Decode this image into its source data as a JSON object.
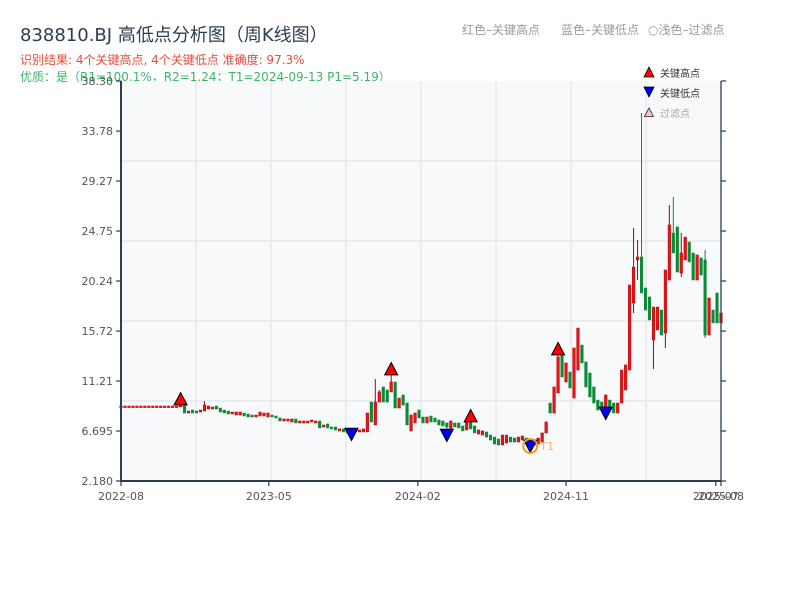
{
  "header": {
    "title": "838810.BJ 高低点分析图（周K线图）",
    "result_line": "识别结果: 4个关键高点, 4个关键低点  准确度: 97.3%",
    "quality_line": "优质：是（R1=100.1%，R2=1.24；T1=2024-09-13 P1=5.19）",
    "color_notes": [
      "红色–关键高点",
      "蓝色–关键低点",
      "○浅色–过滤点"
    ]
  },
  "legend": [
    {
      "icon": "triangle-up-icon",
      "color": "#ff0000",
      "label": "关键高点"
    },
    {
      "icon": "triangle-down-icon",
      "color": "#0000ff",
      "label": "关键低点"
    },
    {
      "icon": "triangle-outline-icon",
      "color": "#f7c6c6",
      "label": "过滤点"
    }
  ],
  "colors": {
    "up": "#e8141b",
    "up_edge": "#b30000",
    "down": "#0b8a36",
    "key_high": "#ff0000",
    "key_low": "#0000ff",
    "target_ring": "#f39c12",
    "target_label": "#f5b56a",
    "axis": "#2c3e50",
    "grid": "#e1e5ea",
    "plot_bg": "#f7f9fb",
    "tick_label": "#555555"
  },
  "chart_data": {
    "type": "candlestick",
    "title": "838810.BJ 高低点分析图（周K线图）",
    "xlabel": "",
    "ylabel": "",
    "ylim": [
      2.18,
      38.3
    ],
    "grid": {
      "x_divisions": 8,
      "y_divisions": 5
    },
    "legend_position": "upper right",
    "y_ticks": [
      "38.30",
      "33.78",
      "29.27",
      "24.75",
      "20.24",
      "15.72",
      "11.21",
      "6.695",
      "2.180"
    ],
    "x_ticks": [
      {
        "label": "2022-08",
        "index": 0
      },
      {
        "label": "2023-05",
        "index": 37.2
      },
      {
        "label": "2024-02",
        "index": 74.7
      },
      {
        "label": "2024-11",
        "index": 112.0
      },
      {
        "label": "2025-07",
        "index": 149.7
      },
      {
        "label": "2025-08",
        "index": 151
      }
    ],
    "candle_fields": [
      "open",
      "high",
      "low",
      "close"
    ],
    "candles": [
      [
        8.88,
        8.88,
        8.88,
        8.88
      ],
      [
        8.88,
        8.88,
        8.88,
        8.88
      ],
      [
        8.88,
        8.88,
        8.88,
        8.88
      ],
      [
        8.88,
        8.88,
        8.88,
        8.88
      ],
      [
        8.88,
        8.88,
        8.88,
        8.88
      ],
      [
        8.88,
        8.88,
        8.88,
        8.88
      ],
      [
        8.88,
        8.88,
        8.88,
        8.88
      ],
      [
        8.88,
        8.88,
        8.88,
        8.88
      ],
      [
        8.88,
        8.88,
        8.88,
        8.88
      ],
      [
        8.88,
        8.88,
        8.88,
        8.88
      ],
      [
        8.88,
        8.88,
        8.88,
        8.88
      ],
      [
        8.88,
        8.88,
        8.88,
        8.88
      ],
      [
        8.88,
        8.88,
        8.88,
        8.88
      ],
      [
        8.88,
        8.88,
        8.88,
        8.88
      ],
      [
        8.88,
        8.88,
        8.88,
        8.88
      ],
      [
        8.88,
        9.04,
        8.86,
        9.04
      ],
      [
        9.04,
        9.04,
        8.32,
        8.32
      ],
      [
        8.32,
        8.5,
        8.32,
        8.5
      ],
      [
        8.59,
        8.59,
        8.32,
        8.32
      ],
      [
        8.5,
        8.5,
        8.32,
        8.32
      ],
      [
        8.41,
        8.59,
        8.41,
        8.59
      ],
      [
        8.5,
        9.4,
        8.5,
        9.04
      ],
      [
        8.68,
        8.95,
        8.68,
        8.95
      ],
      [
        8.68,
        8.86,
        8.68,
        8.86
      ],
      [
        8.95,
        8.95,
        8.68,
        8.68
      ],
      [
        8.77,
        8.77,
        8.41,
        8.41
      ],
      [
        8.59,
        8.59,
        8.32,
        8.32
      ],
      [
        8.5,
        8.5,
        8.23,
        8.23
      ],
      [
        8.23,
        8.41,
        8.23,
        8.41
      ],
      [
        8.14,
        8.41,
        8.14,
        8.41
      ],
      [
        8.14,
        8.41,
        8.14,
        8.41
      ],
      [
        8.32,
        8.32,
        8.05,
        8.05
      ],
      [
        8.23,
        8.23,
        7.96,
        7.96
      ],
      [
        8.14,
        8.14,
        7.96,
        7.96
      ],
      [
        7.96,
        8.14,
        7.96,
        8.14
      ],
      [
        8.05,
        8.41,
        8.05,
        8.41
      ],
      [
        8.05,
        8.32,
        8.05,
        8.32
      ],
      [
        7.96,
        8.32,
        7.96,
        8.32
      ],
      [
        8.14,
        8.14,
        7.96,
        7.96
      ],
      [
        8.05,
        8.05,
        7.87,
        7.87
      ],
      [
        7.87,
        7.87,
        7.6,
        7.6
      ],
      [
        7.6,
        7.78,
        7.6,
        7.78
      ],
      [
        7.6,
        7.78,
        7.6,
        7.78
      ],
      [
        7.51,
        7.78,
        7.51,
        7.78
      ],
      [
        7.78,
        7.78,
        7.42,
        7.42
      ],
      [
        7.42,
        7.6,
        7.42,
        7.6
      ],
      [
        7.42,
        7.6,
        7.42,
        7.6
      ],
      [
        7.42,
        7.6,
        7.42,
        7.6
      ],
      [
        7.51,
        7.69,
        7.51,
        7.69
      ],
      [
        7.42,
        7.6,
        7.42,
        7.6
      ],
      [
        7.6,
        7.6,
        6.97,
        6.97
      ],
      [
        7.06,
        7.24,
        7.06,
        7.24
      ],
      [
        7.33,
        7.33,
        6.97,
        6.97
      ],
      [
        7.06,
        7.06,
        6.88,
        6.88
      ],
      [
        7.06,
        7.06,
        6.79,
        6.79
      ],
      [
        6.7,
        6.88,
        6.7,
        6.88
      ],
      [
        6.88,
        6.88,
        6.61,
        6.61
      ],
      [
        6.79,
        6.79,
        6.52,
        6.52
      ],
      [
        6.7,
        6.7,
        6.42,
        6.52
      ],
      [
        6.61,
        6.79,
        6.61,
        6.79
      ],
      [
        6.61,
        6.79,
        6.61,
        6.79
      ],
      [
        6.61,
        6.88,
        6.61,
        6.88
      ],
      [
        6.61,
        8.32,
        6.61,
        8.32
      ],
      [
        9.31,
        9.31,
        7.51,
        7.51
      ],
      [
        7.24,
        11.39,
        7.24,
        9.31
      ],
      [
        9.31,
        10.4,
        9.31,
        10.22
      ],
      [
        10.67,
        10.67,
        9.31,
        9.31
      ],
      [
        10.4,
        10.4,
        9.31,
        9.31
      ],
      [
        10.22,
        11.75,
        10.22,
        11.12
      ],
      [
        11.12,
        11.12,
        8.77,
        8.77
      ],
      [
        8.77,
        9.67,
        8.77,
        9.67
      ],
      [
        9.95,
        9.95,
        9.04,
        9.04
      ],
      [
        9.22,
        9.22,
        7.24,
        7.24
      ],
      [
        6.7,
        8.14,
        6.7,
        8.14
      ],
      [
        7.42,
        8.32,
        7.42,
        8.32
      ],
      [
        8.59,
        8.59,
        7.87,
        7.87
      ],
      [
        7.96,
        7.96,
        7.42,
        7.42
      ],
      [
        7.42,
        7.96,
        7.42,
        7.96
      ],
      [
        8.05,
        8.05,
        7.51,
        7.51
      ],
      [
        7.87,
        7.87,
        7.51,
        7.51
      ],
      [
        7.69,
        7.69,
        7.24,
        7.24
      ],
      [
        7.6,
        7.6,
        7.15,
        7.15
      ],
      [
        7.42,
        7.42,
        6.88,
        7.06
      ],
      [
        6.79,
        7.6,
        6.79,
        7.6
      ],
      [
        7.42,
        7.42,
        7.06,
        7.06
      ],
      [
        7.42,
        7.42,
        6.97,
        6.97
      ],
      [
        7.15,
        7.15,
        6.7,
        6.7
      ],
      [
        6.79,
        7.51,
        6.79,
        7.51
      ],
      [
        7.51,
        7.69,
        6.88,
        6.88
      ],
      [
        7.15,
        7.15,
        6.52,
        6.52
      ],
      [
        6.42,
        6.79,
        6.42,
        6.79
      ],
      [
        6.33,
        6.7,
        6.33,
        6.7
      ],
      [
        6.61,
        6.61,
        6.15,
        6.15
      ],
      [
        6.33,
        6.33,
        5.88,
        5.88
      ],
      [
        6.15,
        6.15,
        5.52,
        5.52
      ],
      [
        5.97,
        5.97,
        5.43,
        5.43
      ],
      [
        5.43,
        6.33,
        5.43,
        6.33
      ],
      [
        5.61,
        6.33,
        5.61,
        6.33
      ],
      [
        6.15,
        6.15,
        5.7,
        5.7
      ],
      [
        6.06,
        6.06,
        5.7,
        5.7
      ],
      [
        5.7,
        6.15,
        5.7,
        6.15
      ],
      [
        5.88,
        6.24,
        5.88,
        6.24
      ],
      [
        6.06,
        6.06,
        5.61,
        5.61
      ],
      [
        5.7,
        5.7,
        5.19,
        5.43
      ],
      [
        5.43,
        5.88,
        5.43,
        5.88
      ],
      [
        5.52,
        6.06,
        5.52,
        6.06
      ],
      [
        5.61,
        6.52,
        5.61,
        6.52
      ],
      [
        6.52,
        7.51,
        6.52,
        7.51
      ],
      [
        9.22,
        9.22,
        8.32,
        8.32
      ],
      [
        8.32,
        10.67,
        8.32,
        10.67
      ],
      [
        10.13,
        13.56,
        10.13,
        13.38
      ],
      [
        13.56,
        13.56,
        11.57,
        11.57
      ],
      [
        11.12,
        12.84,
        11.12,
        12.84
      ],
      [
        12.02,
        12.02,
        10.58,
        10.58
      ],
      [
        9.67,
        14.19,
        9.67,
        14.19
      ],
      [
        12.2,
        15.99,
        12.2,
        15.99
      ],
      [
        14.46,
        14.46,
        12.84,
        12.84
      ],
      [
        12.93,
        12.93,
        10.67,
        10.67
      ],
      [
        11.93,
        11.93,
        9.77,
        9.77
      ],
      [
        10.67,
        10.67,
        9.22,
        9.22
      ],
      [
        9.49,
        9.49,
        8.59,
        8.59
      ],
      [
        9.31,
        9.31,
        8.59,
        8.59
      ],
      [
        8.41,
        9.95,
        8.32,
        9.95
      ],
      [
        9.49,
        9.49,
        8.77,
        8.77
      ],
      [
        9.22,
        9.22,
        8.32,
        8.32
      ],
      [
        8.32,
        9.22,
        8.32,
        9.22
      ],
      [
        9.22,
        12.2,
        9.22,
        12.2
      ],
      [
        10.4,
        12.66,
        10.4,
        12.66
      ],
      [
        12.2,
        19.88,
        12.2,
        19.88
      ],
      [
        18.25,
        25.03,
        17.35,
        21.5
      ],
      [
        22.14,
        23.94,
        20.33,
        22.41
      ],
      [
        22.41,
        35.41,
        19.16,
        19.16
      ],
      [
        19.61,
        19.61,
        17.62,
        17.62
      ],
      [
        18.8,
        18.8,
        16.72,
        16.72
      ],
      [
        14.91,
        17.89,
        12.29,
        17.89
      ],
      [
        15.82,
        17.89,
        15.82,
        17.89
      ],
      [
        17.62,
        17.62,
        15.36,
        15.36
      ],
      [
        15.54,
        21.23,
        14.19,
        21.23
      ],
      [
        20.33,
        27.1,
        20.33,
        25.3
      ],
      [
        24.57,
        27.83,
        22.77,
        22.77
      ],
      [
        25.12,
        25.12,
        21.05,
        21.05
      ],
      [
        20.96,
        24.57,
        20.6,
        22.77
      ],
      [
        22.14,
        24.21,
        22.14,
        24.21
      ],
      [
        23.76,
        23.76,
        21.96,
        21.96
      ],
      [
        22.77,
        22.77,
        20.33,
        20.33
      ],
      [
        20.33,
        22.59,
        20.33,
        22.59
      ],
      [
        22.32,
        22.32,
        20.78,
        20.78
      ],
      [
        22.14,
        23.04,
        15.09,
        15.36
      ],
      [
        15.36,
        18.71,
        15.36,
        18.71
      ],
      [
        17.62,
        17.62,
        16.45,
        16.45
      ],
      [
        19.16,
        19.16,
        16.45,
        16.45
      ],
      [
        16.45,
        17.35,
        16.45,
        17.35
      ]
    ],
    "key_highs": [
      {
        "index": 15,
        "price": 9.58
      },
      {
        "index": 68,
        "price": 12.29
      },
      {
        "index": 88,
        "price": 8.05
      },
      {
        "index": 110,
        "price": 14.1
      }
    ],
    "key_lows": [
      {
        "index": 58,
        "price": 6.42
      },
      {
        "index": 82,
        "price": 6.33
      },
      {
        "index": 103,
        "price": 5.34
      },
      {
        "index": 122,
        "price": 8.32
      }
    ],
    "target": {
      "label": "T1",
      "index": 103,
      "price": 5.34,
      "date": "2024-09-13",
      "p1": 5.19
    },
    "annotations": {
      "key_high_count": 4,
      "key_low_count": 4,
      "accuracy": "97.3%",
      "r1": "100.1%",
      "r2": "1.24"
    }
  }
}
